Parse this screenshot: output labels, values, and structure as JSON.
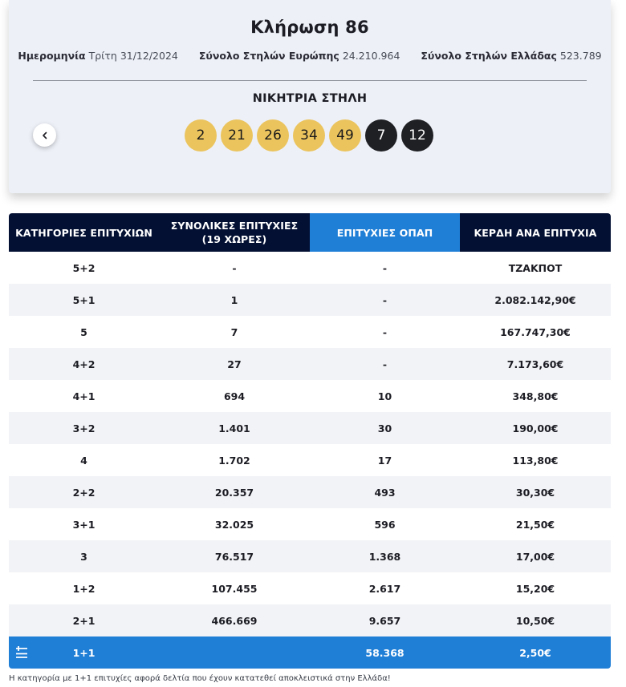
{
  "draw": {
    "title": "Κλήρωση 86",
    "date_label": "Ημερομηνία",
    "date_value": "Τρίτη 31/12/2024",
    "europe_label": "Σύνολο Στηλών Ευρώπης",
    "europe_value": "24.210.964",
    "greece_label": "Σύνολο Στηλών Ελλάδας",
    "greece_value": "523.789",
    "winning_title": "ΝΙΚΗΤΡΙΑ ΣΤΗΛΗ",
    "numbers": [
      "2",
      "21",
      "26",
      "34",
      "49"
    ],
    "stars": [
      "7",
      "12"
    ],
    "colors": {
      "main_ball": "#ebc45e",
      "star_ball": "#1f2024"
    },
    "prev_icon": "chevron-left-icon"
  },
  "table": {
    "headers": {
      "category": "ΚΑΤΗΓΟΡΙΕΣ ΕΠΙΤΥΧΙΩΝ",
      "total_line1": "ΣΥΝΟΛΙΚΕΣ ΕΠΙΤΥΧΙΕΣ",
      "total_line2": "(19 ΧΩΡΕΣ)",
      "opap": "ΕΠΙΤΥΧΙΕΣ ΟΠΑΠ",
      "prize": "ΚΕΡΔΗ ΑΝΑ ΕΠΙΤΥΧΙΑ"
    },
    "rows": [
      {
        "category": "5+2",
        "total": "-",
        "opap": "-",
        "prize": "ΤΖΑΚΠΟΤ"
      },
      {
        "category": "5+1",
        "total": "1",
        "opap": "-",
        "prize": "2.082.142,90€"
      },
      {
        "category": "5",
        "total": "7",
        "opap": "-",
        "prize": "167.747,30€"
      },
      {
        "category": "4+2",
        "total": "27",
        "opap": "-",
        "prize": "7.173,60€"
      },
      {
        "category": "4+1",
        "total": "694",
        "opap": "10",
        "prize": "348,80€"
      },
      {
        "category": "3+2",
        "total": "1.401",
        "opap": "30",
        "prize": "190,00€"
      },
      {
        "category": "4",
        "total": "1.702",
        "opap": "17",
        "prize": "113,80€"
      },
      {
        "category": "2+2",
        "total": "20.357",
        "opap": "493",
        "prize": "30,30€"
      },
      {
        "category": "3+1",
        "total": "32.025",
        "opap": "596",
        "prize": "21,50€"
      },
      {
        "category": "3",
        "total": "76.517",
        "opap": "1.368",
        "prize": "17,00€"
      },
      {
        "category": "1+2",
        "total": "107.455",
        "opap": "2.617",
        "prize": "15,20€"
      },
      {
        "category": "2+1",
        "total": "466.669",
        "opap": "9.657",
        "prize": "10,50€"
      }
    ],
    "special_row": {
      "category": "1+1",
      "total": "",
      "opap": "58.368",
      "prize": "2,50€",
      "icon": "plus-minus-icon"
    },
    "colors": {
      "header_bg": "#031033",
      "accent": "#1f7ed6"
    }
  },
  "footnote": "Η κατηγορία με 1+1 επιτυχίες αφορά δελτία που έχουν κατατεθεί αποκλειστικά στην Ελλάδα!"
}
